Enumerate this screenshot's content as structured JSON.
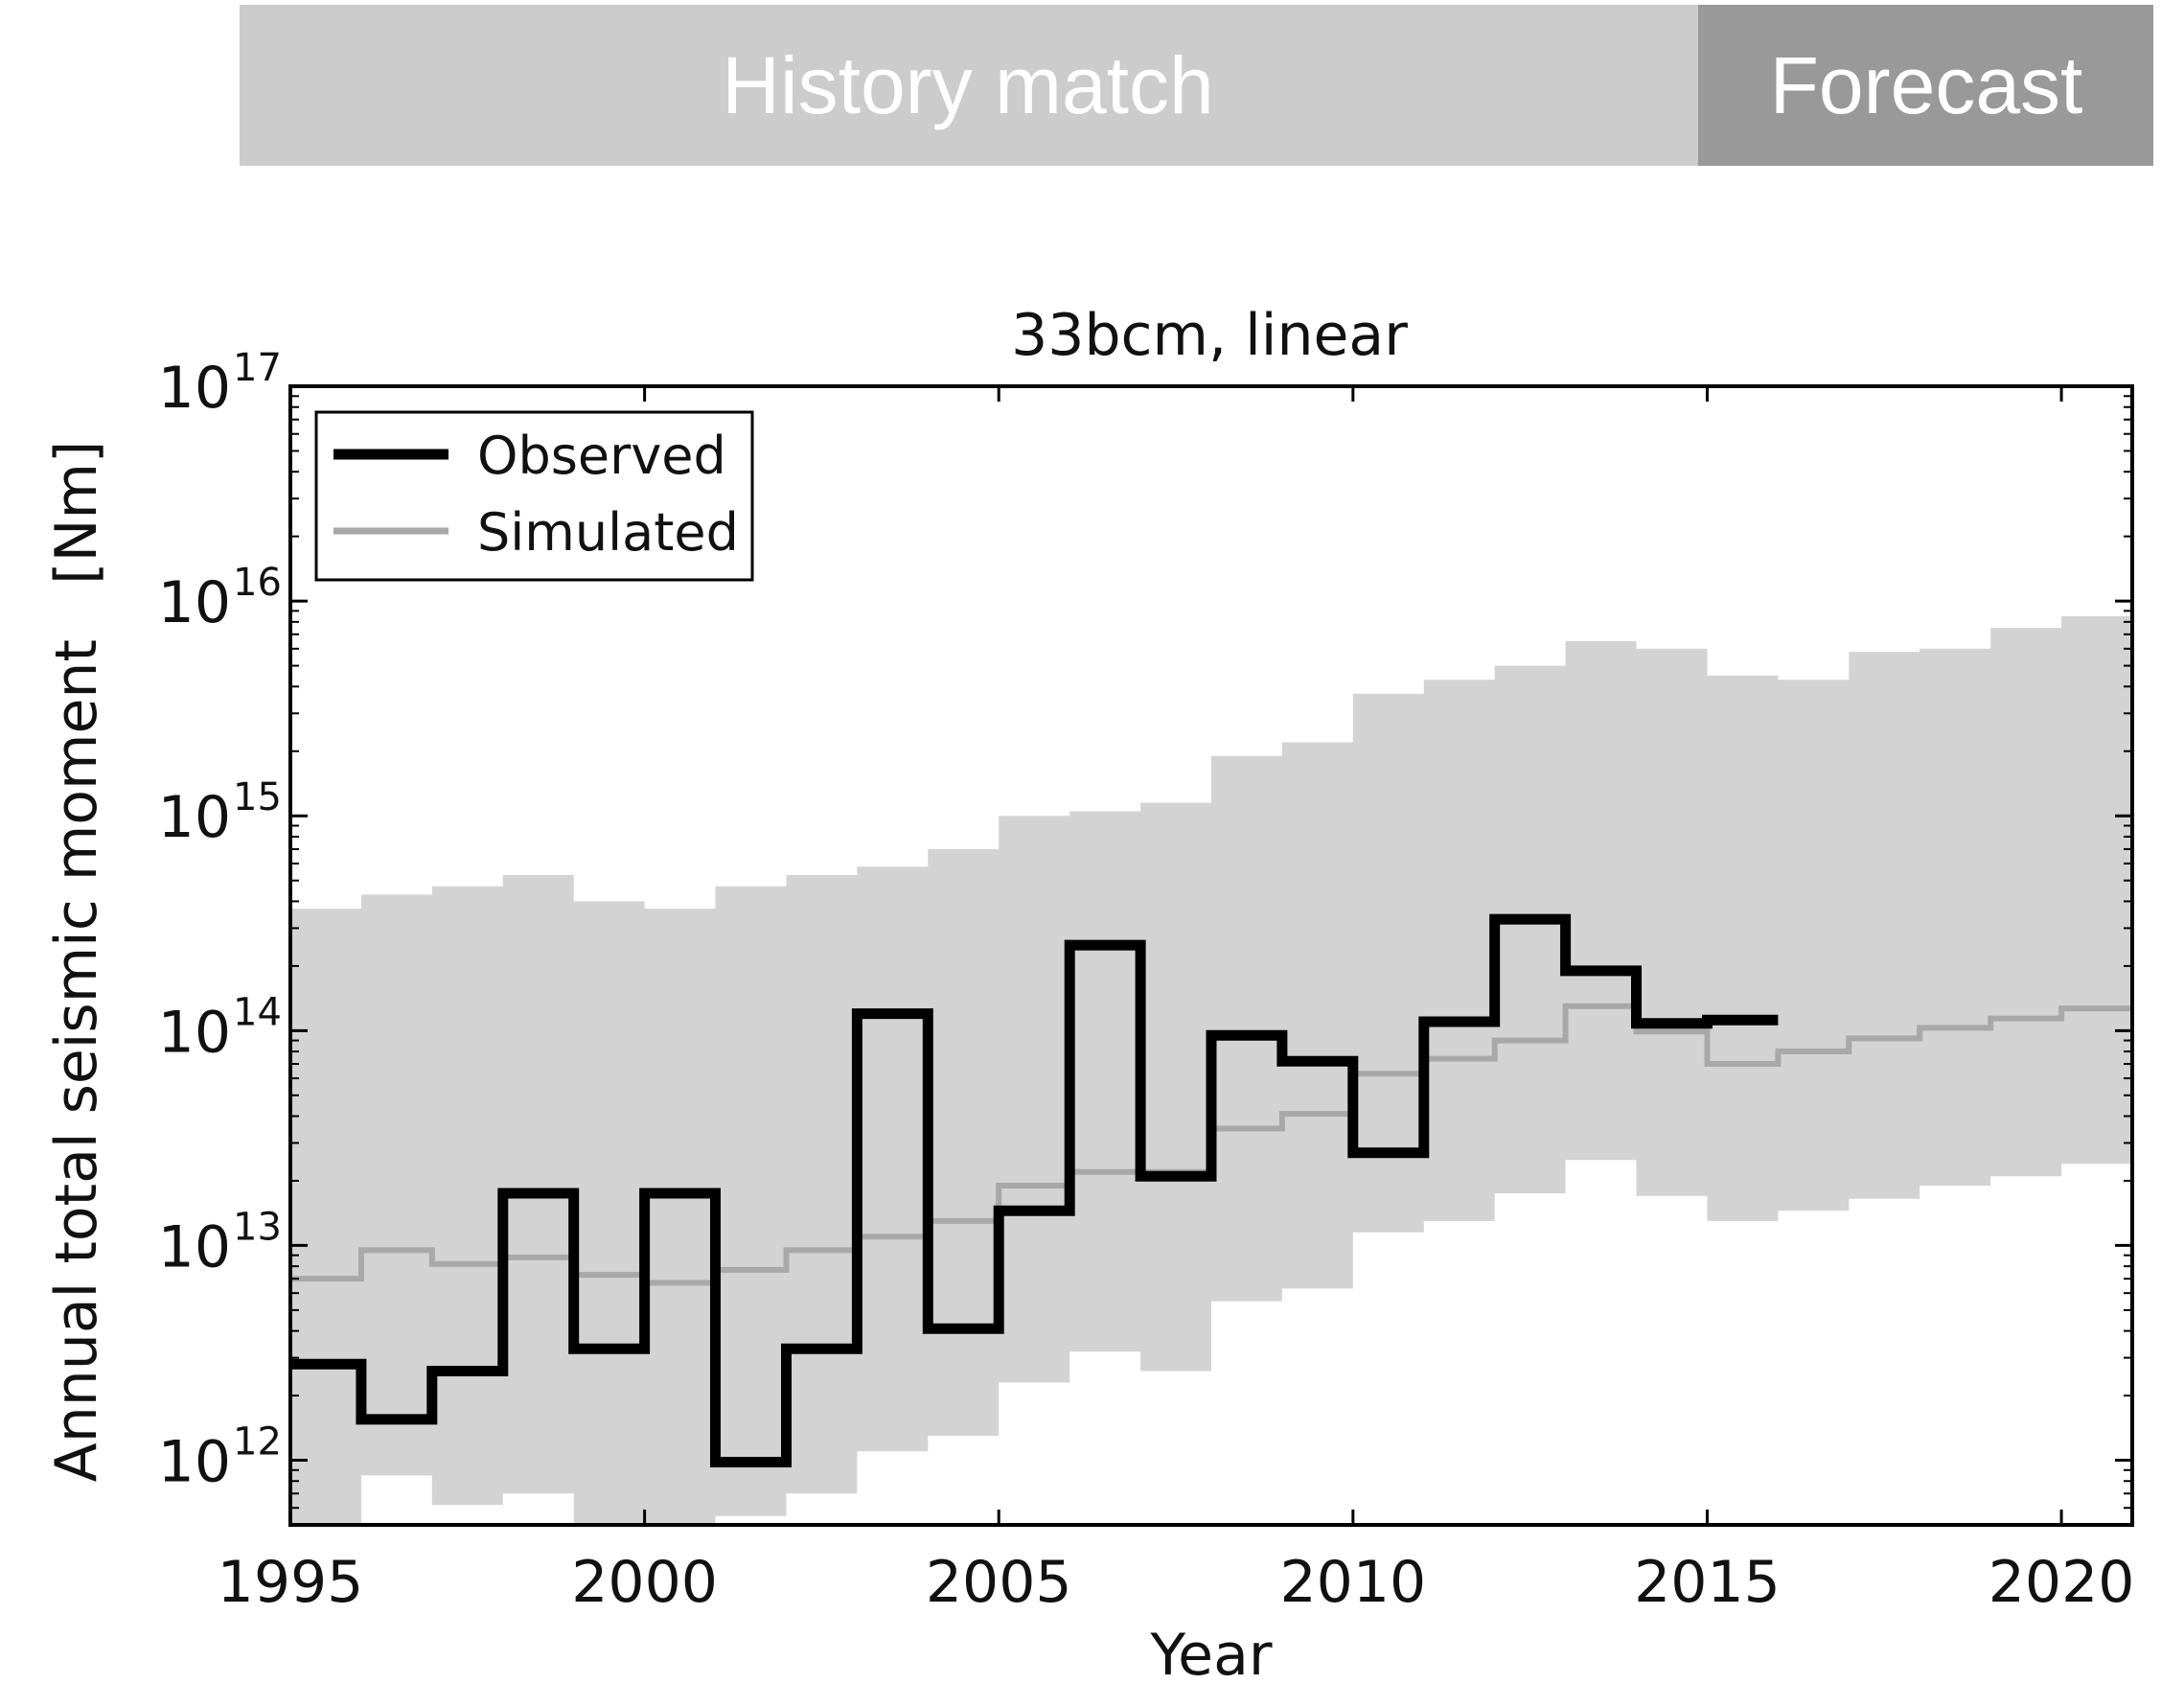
{
  "banner": {
    "history_label": "History match",
    "forecast_label": "Forecast",
    "history_color": "#cccccc",
    "forecast_color": "#999999"
  },
  "chart_data": {
    "type": "line",
    "title": "33bcm, linear",
    "xlabel": "Year",
    "ylabel": "Annual total seismic moment   [Nm]",
    "xlim": [
      1995,
      2021
    ],
    "ylim": [
      500000000000.0,
      1e+17
    ],
    "yscale": "log",
    "x_ticks": [
      1995,
      2000,
      2005,
      2010,
      2015,
      2020
    ],
    "y_ticks": [
      {
        "value": 1000000000000.0,
        "base": "10",
        "exp": "12"
      },
      {
        "value": 10000000000000.0,
        "base": "10",
        "exp": "13"
      },
      {
        "value": 100000000000000.0,
        "base": "10",
        "exp": "14"
      },
      {
        "value": 1000000000000000.0,
        "base": "10",
        "exp": "15"
      },
      {
        "value": 1e+16,
        "base": "10",
        "exp": "16"
      },
      {
        "value": 1e+17,
        "base": "10",
        "exp": "17"
      }
    ],
    "grid": false,
    "legend_position": "top-left",
    "band": {
      "color": "#d3d3d3",
      "years": [
        1995,
        1996,
        1997,
        1998,
        1999,
        2000,
        2001,
        2002,
        2003,
        2004,
        2005,
        2006,
        2007,
        2008,
        2009,
        2010,
        2011,
        2012,
        2013,
        2014,
        2015,
        2016,
        2017,
        2018,
        2019,
        2020
      ],
      "upper": [
        370000000000000.0,
        430000000000000.0,
        470000000000000.0,
        530000000000000.0,
        400000000000000.0,
        370000000000000.0,
        470000000000000.0,
        530000000000000.0,
        580000000000000.0,
        700000000000000.0,
        1000000000000000.0,
        1050000000000000.0,
        1150000000000000.0,
        1900000000000000.0,
        2200000000000000.0,
        3700000000000000.0,
        4300000000000000.0,
        5000000000000000.0,
        6500000000000000.0,
        6000000000000000.0,
        4500000000000000.0,
        4300000000000000.0,
        5800000000000000.0,
        6000000000000000.0,
        7500000000000000.0,
        8500000000000000.0
      ],
      "lower": [
        400000000000.0,
        850000000000.0,
        620000000000.0,
        700000000000.0,
        500000000000.0,
        450000000000.0,
        550000000000.0,
        700000000000.0,
        1100000000000.0,
        1300000000000.0,
        2300000000000.0,
        3200000000000.0,
        2600000000000.0,
        5500000000000.0,
        6300000000000.0,
        11500000000000.0,
        13000000000000.0,
        17500000000000.0,
        25000000000000.0,
        17000000000000.0,
        13000000000000.0,
        14500000000000.0,
        16500000000000.0,
        19000000000000.0,
        21000000000000.0,
        24000000000000.0
      ]
    },
    "series": [
      {
        "name": "Observed",
        "color": "#000000",
        "step": "post",
        "years": [
          1995,
          1996,
          1997,
          1998,
          1999,
          2000,
          2001,
          2002,
          2003,
          2004,
          2005,
          2006,
          2007,
          2008,
          2009,
          2010,
          2011,
          2012,
          2013,
          2014,
          2015
        ],
        "values": [
          2800000000000.0,
          1550000000000.0,
          2600000000000.0,
          17500000000000.0,
          3300000000000.0,
          17500000000000.0,
          980000000000.0,
          3300000000000.0,
          120000000000000.0,
          4100000000000.0,
          14500000000000.0,
          250000000000000.0,
          21000000000000.0,
          95000000000000.0,
          72000000000000.0,
          27000000000000.0,
          110000000000000.0,
          330000000000000.0,
          190000000000000.0,
          108000000000000.0,
          112000000000000.0
        ],
        "end_year": 2016
      },
      {
        "name": "Simulated",
        "color": "#a8a8a8",
        "step": "post",
        "years": [
          1995,
          1996,
          1997,
          1998,
          1999,
          2000,
          2001,
          2002,
          2003,
          2004,
          2005,
          2006,
          2007,
          2008,
          2009,
          2010,
          2011,
          2012,
          2013,
          2014,
          2015,
          2016,
          2017,
          2018,
          2019,
          2020
        ],
        "values": [
          7000000000000.0,
          9500000000000.0,
          8200000000000.0,
          8800000000000.0,
          7300000000000.0,
          6700000000000.0,
          7700000000000.0,
          9500000000000.0,
          11000000000000.0,
          13000000000000.0,
          19000000000000.0,
          22000000000000.0,
          22000000000000.0,
          35000000000000.0,
          41000000000000.0,
          63000000000000.0,
          74000000000000.0,
          90000000000000.0,
          130000000000000.0,
          99000000000000.0,
          70000000000000.0,
          80000000000000.0,
          92000000000000.0,
          103000000000000.0,
          114000000000000.0,
          127000000000000.0
        ],
        "end_year": 2021
      }
    ]
  }
}
